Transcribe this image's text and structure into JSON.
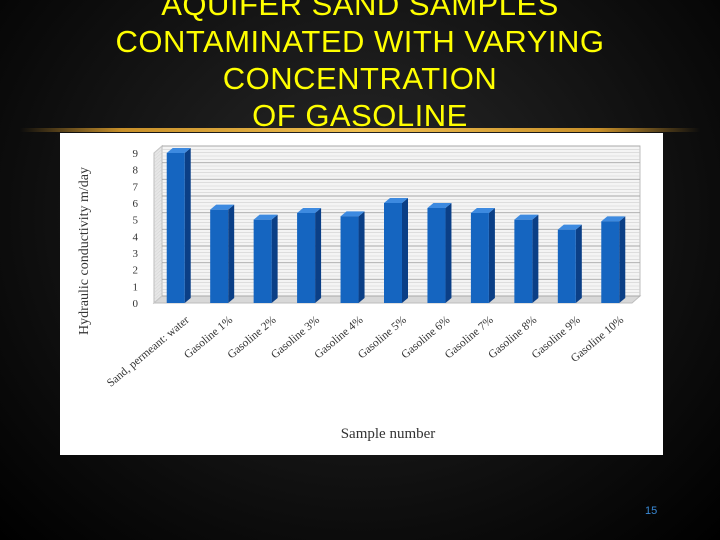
{
  "slide": {
    "title_lines": [
      "AQUIFER SAND SAMPLES",
      "CONTAMINATED WITH VARYING",
      "CONCENTRATION",
      "OF GASOLINE"
    ],
    "page_number": "15",
    "title_color": "#ffff00",
    "page_number_color": "#3a8ad6"
  },
  "chart_data": {
    "type": "bar",
    "categories": [
      "Sand, permeant: water",
      "Gasoline 1%",
      "Gasoline 2%",
      "Gasoline 3%",
      "Gasoline 4%",
      "Gasoline 5%",
      "Gasoline 6%",
      "Gasoline 7%",
      "Gasoline 8%",
      "Gasoline 9%",
      "Gasoline 10%"
    ],
    "values": [
      9.0,
      5.6,
      5.0,
      5.4,
      5.2,
      6.0,
      5.7,
      5.4,
      5.0,
      4.4,
      4.9
    ],
    "xlabel": "Sample number",
    "ylabel": "Hydraulic conductivity m/day",
    "ylim": [
      0,
      9
    ],
    "yticks": [
      "0",
      "1",
      "2",
      "3",
      "4",
      "5",
      "6",
      "7",
      "8",
      "9"
    ],
    "grid": true,
    "bar_color": "#1565c0"
  }
}
